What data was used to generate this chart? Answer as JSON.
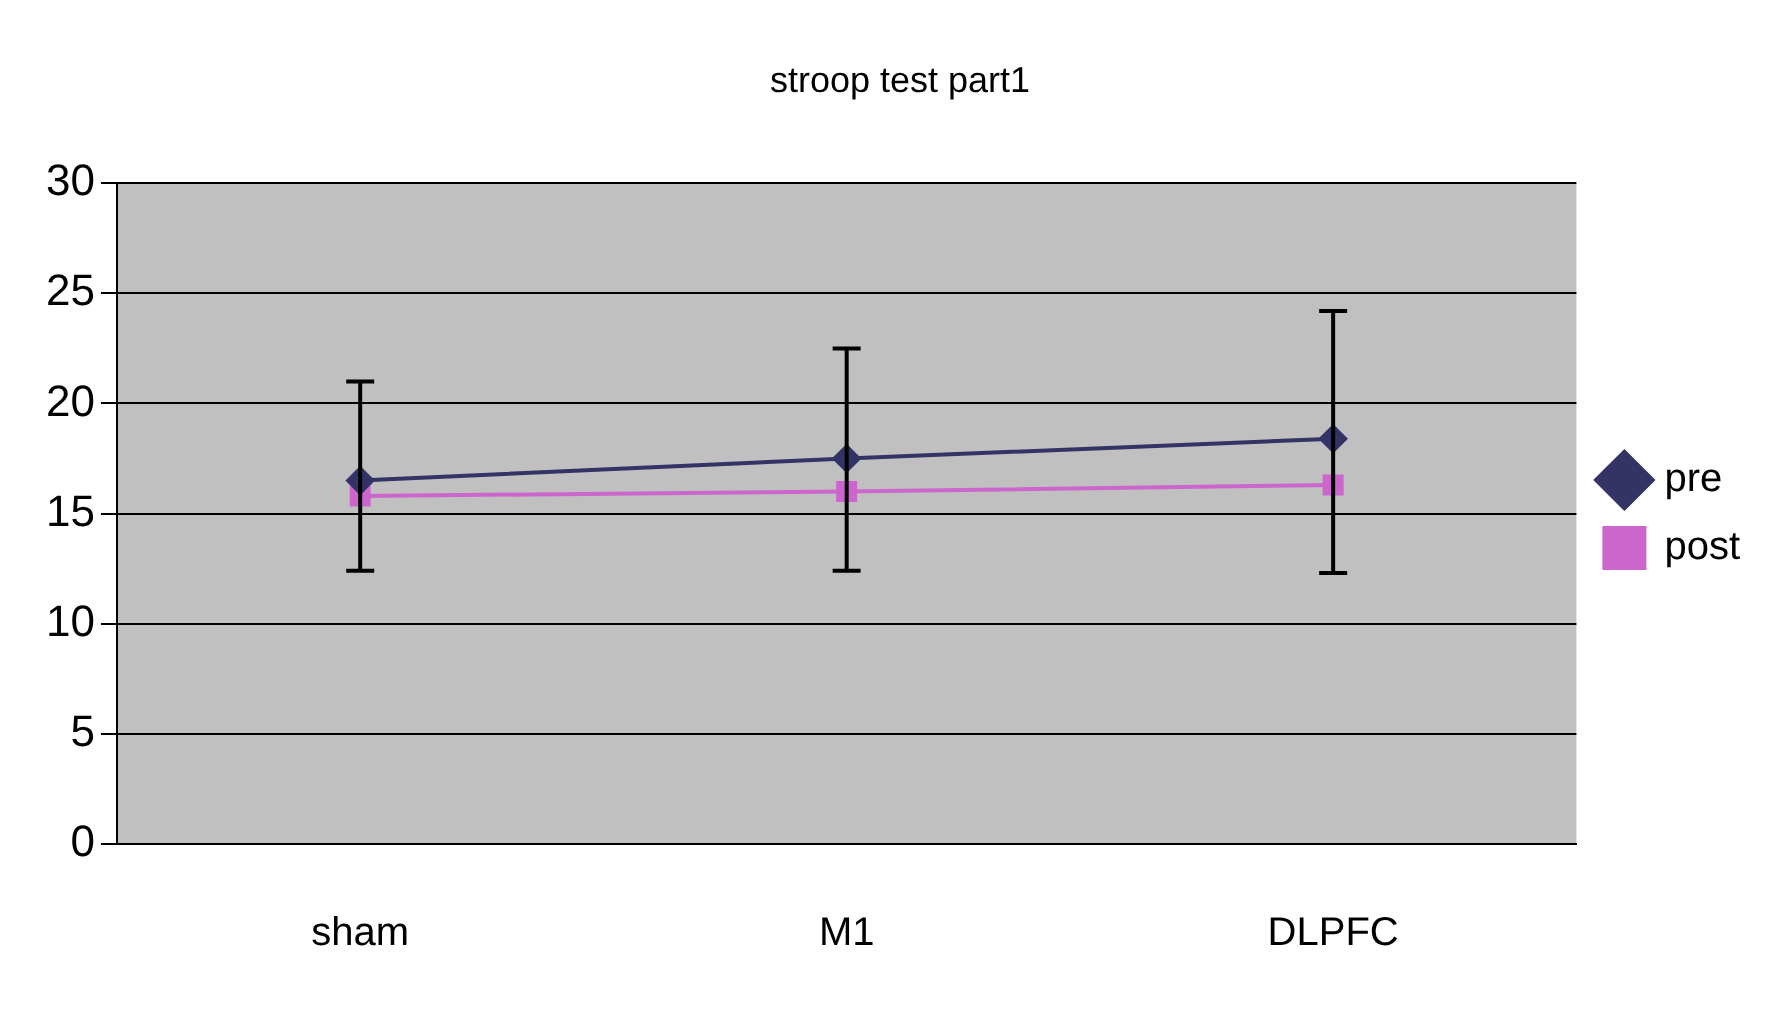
{
  "chart_data": {
    "type": "line",
    "title": "stroop test part1",
    "categories": [
      "sham",
      "M1",
      "DLPFC"
    ],
    "series": [
      {
        "name": "pre",
        "color": "#333366",
        "marker": "diamond",
        "values": [
          16.5,
          17.5,
          18.4
        ],
        "errors": [
          [
            12.4,
            21.0
          ],
          [
            12.4,
            22.5
          ],
          [
            12.3,
            24.2
          ]
        ]
      },
      {
        "name": "post",
        "color": "#cc66cc",
        "marker": "square",
        "values": [
          15.8,
          16.0,
          16.3
        ]
      }
    ],
    "ylim": [
      0,
      30
    ],
    "yticks": [
      0,
      5,
      10,
      15,
      20,
      25,
      30
    ],
    "grid": "y",
    "legend": "right"
  }
}
